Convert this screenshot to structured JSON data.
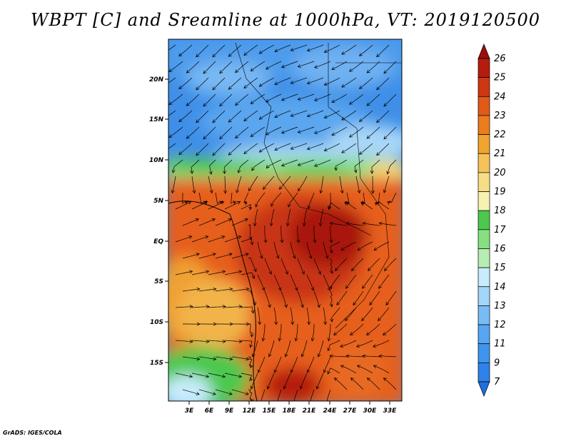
{
  "title": "WBPT [C] and Sreamline at 1000hPa, VT: 2019120500",
  "credit": "GrADS: IGES/COLA",
  "map": {
    "lat_ticks": [
      "20N",
      "15N",
      "10N",
      "5N",
      "EQ",
      "5S",
      "10S",
      "15S"
    ],
    "lon_ticks": [
      "3E",
      "6E",
      "9E",
      "12E",
      "15E",
      "18E",
      "21E",
      "24E",
      "27E",
      "30E",
      "33E"
    ]
  },
  "colorbar": {
    "levels": [
      "7",
      "9",
      "11",
      "12",
      "13",
      "14",
      "15",
      "16",
      "17",
      "18",
      "19",
      "20",
      "21",
      "22",
      "23",
      "24",
      "25",
      "26"
    ],
    "colors": [
      "#1e6fe0",
      "#2f82ea",
      "#3f95ee",
      "#56a6f2",
      "#78bcf6",
      "#a3d6fa",
      "#c8ecfb",
      "#b7edb3",
      "#86e082",
      "#4cc84e",
      "#f6f2b2",
      "#f6de86",
      "#f5c35a",
      "#f1a42f",
      "#ec7c1e",
      "#e05a18",
      "#cf3712",
      "#b51c0e",
      "#9c0e0a"
    ]
  },
  "colors": {
    "frame": "#000000"
  }
}
